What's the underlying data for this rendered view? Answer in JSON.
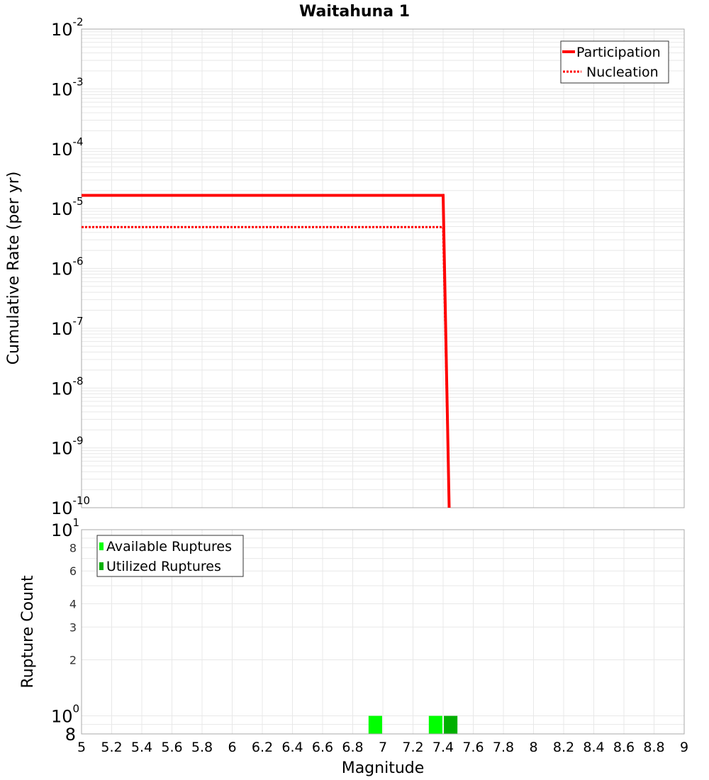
{
  "chart_data": [
    {
      "type": "line",
      "title": "Waitahuna 1",
      "xlabel": "Magnitude",
      "ylabel": "Cumulative Rate (per yr)",
      "xlim": [
        5,
        9
      ],
      "ylim": [
        1e-10,
        0.01
      ],
      "yscale": "log",
      "grid": true,
      "legend_position": "upper right",
      "y_tick_labels": [
        "10^-2",
        "10^-3",
        "10^-4",
        "10^-5",
        "10^-6",
        "10^-7",
        "10^-8",
        "10^-9",
        "10^-10"
      ],
      "series": [
        {
          "name": "Participation",
          "style": "solid",
          "color": "#ff0000",
          "x": [
            5.0,
            7.4,
            7.44
          ],
          "y": [
            1.66e-05,
            1.66e-05,
            1e-10
          ]
        },
        {
          "name": "Nucleation",
          "style": "dotted",
          "color": "#ff0000",
          "x": [
            5.0,
            7.4,
            7.44
          ],
          "y": [
            4.9e-06,
            4.9e-06,
            1e-10
          ]
        }
      ]
    },
    {
      "type": "bar",
      "title": "",
      "xlabel": "Magnitude",
      "ylabel": "Rupture Count",
      "xlim": [
        5,
        9
      ],
      "ylim": [
        0.8,
        10
      ],
      "yscale": "log",
      "grid": true,
      "legend_position": "upper left",
      "y_tick_labels": [
        "10^1",
        "8",
        "6",
        "4",
        "3",
        "2",
        "10^0",
        "8"
      ],
      "series": [
        {
          "name": "Available Ruptures",
          "color": "#00ff00",
          "x": [
            6.95,
            7.35
          ],
          "values": [
            1,
            1
          ]
        },
        {
          "name": "Utilized Ruptures",
          "color": "#00b000",
          "x": [
            7.45
          ],
          "values": [
            1
          ]
        }
      ]
    }
  ],
  "x_tick_labels": [
    "5",
    "5.2",
    "5.4",
    "5.6",
    "5.8",
    "6",
    "6.2",
    "6.4",
    "6.6",
    "6.8",
    "7",
    "7.2",
    "7.4",
    "7.6",
    "7.8",
    "8",
    "8.2",
    "8.4",
    "8.6",
    "8.8",
    "9"
  ],
  "labels": {
    "title": "Waitahuna 1",
    "top_ylabel": "Cumulative Rate (per yr)",
    "bottom_ylabel": "Rupture Count",
    "xlabel": "Magnitude",
    "legend_participation": "Participation",
    "legend_nucleation": "Nucleation",
    "legend_available": "Available Ruptures",
    "legend_utilized": "Utilized Ruptures"
  },
  "colors": {
    "participation": "#ff0000",
    "nucleation": "#ff0000",
    "available": "#00ff00",
    "utilized": "#00b000",
    "grid": "#e8e8e8",
    "frame": "#a0a0a0"
  }
}
